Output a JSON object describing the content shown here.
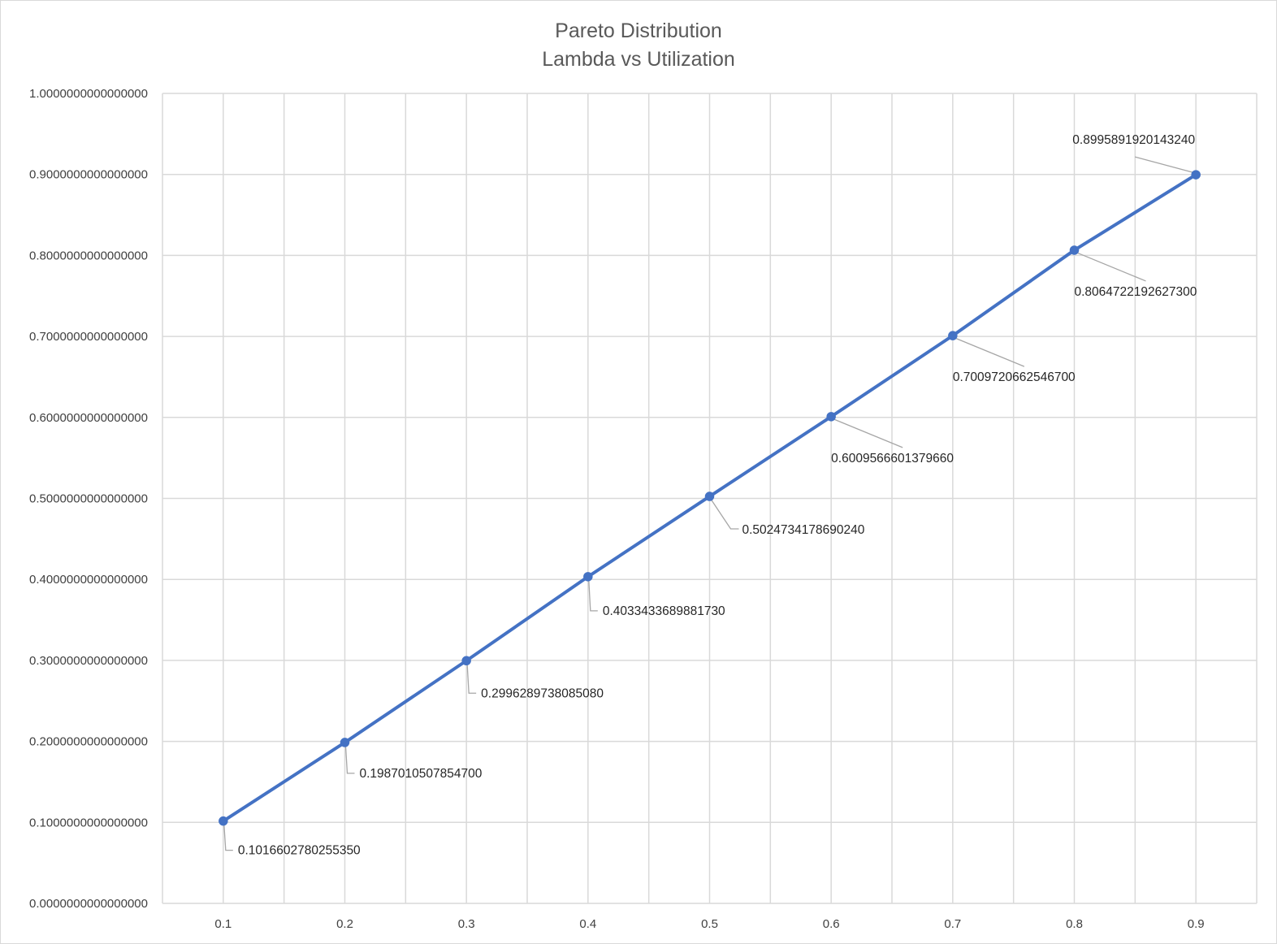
{
  "chart_data": {
    "type": "line",
    "title_lines": [
      "Pareto Distribution",
      "Lambda vs Utilization"
    ],
    "xlabel": "",
    "ylabel": "",
    "x": [
      0.1,
      0.2,
      0.3,
      0.4,
      0.5,
      0.6,
      0.7,
      0.8,
      0.9
    ],
    "x_tick_labels": [
      "0.1",
      "0.2",
      "0.3",
      "0.4",
      "0.5",
      "0.6",
      "0.7",
      "0.8",
      "0.9"
    ],
    "ylim": [
      0,
      1
    ],
    "y_ticks": [
      0,
      0.1,
      0.2,
      0.3,
      0.4,
      0.5,
      0.6,
      0.7,
      0.8,
      0.9,
      1.0
    ],
    "y_tick_labels": [
      "0.0000000000000000",
      "0.1000000000000000",
      "0.2000000000000000",
      "0.3000000000000000",
      "0.4000000000000000",
      "0.5000000000000000",
      "0.6000000000000000",
      "0.7000000000000000",
      "0.8000000000000000",
      "0.9000000000000000",
      "1.0000000000000000"
    ],
    "grid": true,
    "legend": "none",
    "series": [
      {
        "color": "#4472C4",
        "values": [
          0.101660278025535,
          0.19870105078547,
          0.299628973808508,
          0.403343368988173,
          0.502473417869024,
          0.600956660137966,
          0.70097206625467,
          0.80647221926273,
          0.899589192014324
        ],
        "data_labels": [
          "0.1016602780255350",
          "0.1987010507854700",
          "0.2996289738085080",
          "0.4033433689881730",
          "0.5024734178690240",
          "0.6009566601379660",
          "0.7009720662546700",
          "0.8064722192627300",
          "0.8995891920143240"
        ]
      }
    ]
  }
}
